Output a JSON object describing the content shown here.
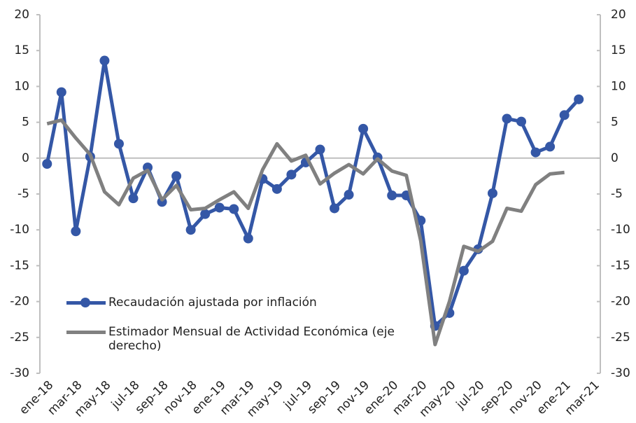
{
  "chart_data": {
    "type": "line",
    "categories": [
      "ene-18",
      null,
      "mar-18",
      null,
      "may-18",
      null,
      "jul-18",
      null,
      "sep-18",
      null,
      "nov-18",
      null,
      "ene-19",
      null,
      "mar-19",
      null,
      "may-19",
      null,
      "jul-19",
      null,
      "sep-19",
      null,
      "nov-19",
      null,
      "ene-20",
      null,
      "mar-20",
      null,
      "may-20",
      null,
      "jul-20",
      null,
      "sep-20",
      null,
      "nov-20",
      null,
      "ene-21",
      null,
      "mar-21"
    ],
    "series": [
      {
        "name": "Recaudación ajustada por inflación",
        "color": "#3457a6",
        "markers": true,
        "values": [
          -0.8,
          9.2,
          -10.2,
          0.2,
          13.6,
          2.0,
          -5.6,
          -1.3,
          -6.1,
          -2.5,
          -10.0,
          -7.8,
          -6.9,
          -7.1,
          -11.2,
          -2.9,
          -4.3,
          -2.3,
          -0.6,
          1.2,
          -7.0,
          -5.1,
          4.1,
          0.1,
          -5.2,
          -5.2,
          -8.7,
          -23.4,
          -21.6,
          -15.7,
          -12.7,
          -4.9,
          5.5,
          5.1,
          0.8,
          1.6,
          6.0,
          8.2,
          null
        ]
      },
      {
        "name": "Estimador Mensual de Actividad Económica (eje derecho)",
        "color": "#808080",
        "markers": false,
        "axis": "y2",
        "values": [
          4.8,
          5.3,
          2.8,
          0.5,
          -4.7,
          -6.5,
          -2.8,
          -1.7,
          -5.8,
          -3.8,
          -7.2,
          -7.0,
          -5.8,
          -4.7,
          -7.0,
          -1.6,
          2.0,
          -0.4,
          0.4,
          -3.6,
          -2.1,
          -0.9,
          -2.2,
          -0.1,
          -1.8,
          -2.4,
          -11.5,
          -26.0,
          -20.0,
          -12.3,
          -13.0,
          -11.6,
          -7.0,
          -7.4,
          -3.7,
          -2.2,
          -2.0,
          null,
          null
        ]
      }
    ],
    "ylim": [
      -30,
      20
    ],
    "yticks": [
      -30,
      -25,
      -20,
      -15,
      -10,
      -5,
      0,
      5,
      10,
      15,
      20
    ],
    "y2lim": [
      -30,
      20
    ],
    "y2ticks": [
      -30,
      -25,
      -20,
      -15,
      -10,
      -5,
      0,
      5,
      10,
      15,
      20
    ],
    "legend": "lower-left"
  }
}
